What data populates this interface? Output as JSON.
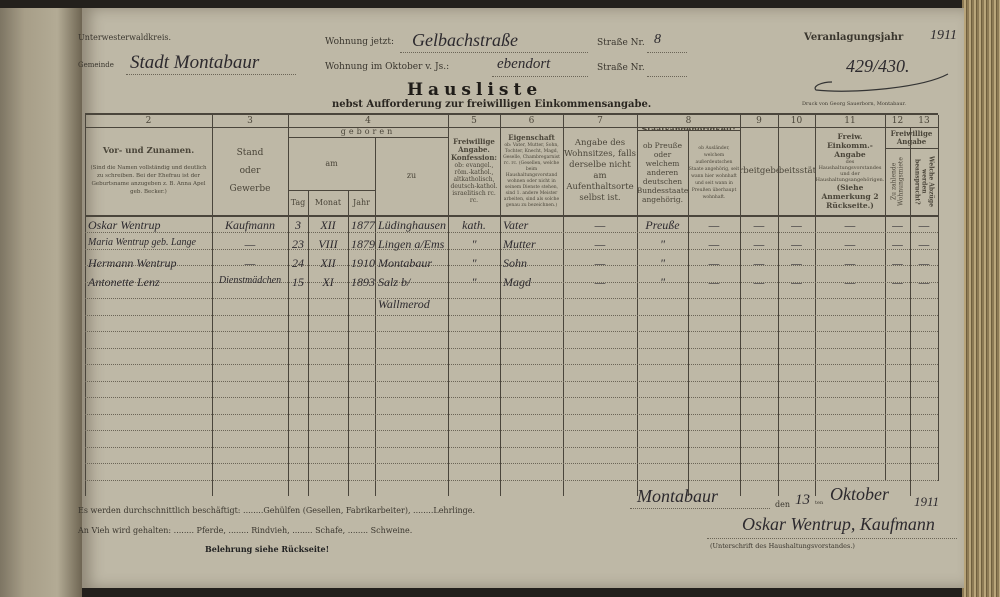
{
  "header": {
    "district_label": "Unterwesterwaldkreis.",
    "municipality_label": "Gemeinde",
    "municipality_value": "Stadt Montabaur",
    "residence_now_label": "Wohnung jetzt:",
    "residence_now_value": "Gelbachstraße",
    "street_no_label": "Straße Nr.",
    "street_no_value": "8",
    "residence_october_label": "Wohnung im Oktober v. Js.:",
    "residence_october_value": "ebendort",
    "street_no2_label": "Straße Nr.",
    "street_no2_value": "",
    "assessment_year_label": "Veranlagungsjahr",
    "assessment_year_value": "1911",
    "reference_number": "429/430.",
    "title": "Hausliste",
    "subtitle": "nebst Aufforderung zur freiwilligen Einkommensangabe.",
    "printer": "Druck von Georg Sauerborn, Montabaur."
  },
  "columns": {
    "numbers": [
      "2",
      "3",
      "4",
      "5",
      "6",
      "7",
      "8",
      "9",
      "10",
      "11",
      "12",
      "13"
    ],
    "names": {
      "title": "Vor- und Zunamen.",
      "note": "(Sind die Namen vollständig und deutlich zu schreiben. Bei der Ehefrau ist der Geburtsname anzugeben z. B. Anna Apel geb. Becker.)"
    },
    "status": "Stand oder Gewerbe",
    "born": "geboren",
    "born_on": "am",
    "day": "Tag",
    "month": "Monat",
    "year": "Jahr",
    "born_in": "zu",
    "religion": {
      "title": "Freiwillige Angabe. Konfession:",
      "note": "ob: evangel., röm.-kathol., altkatholisch, deutsch-kathol. israelitisch rc. rc."
    },
    "role": {
      "title": "Eigenschaft",
      "note": "ob: Vater, Mutter, Sohn, Tochter, Knecht, Magd, Geselle, Chambregarnist rc. rc. (Gesellen, welche beim Haushaltungsvorstand wohnen oder nicht in seinem Dienste stehen, sind 1. andere Meister arbeiten, sind als solche genau zu bezeichnen.)"
    },
    "residence": "Angabe des Wohnsitzes, falls derselbe nicht am Aufenthaltsorte selbst ist.",
    "citizenship": "Staatsangehörigkeit:",
    "citizenship_a": "ob Preuße oder welchem anderen deutschen Bundesstaate angehörig.",
    "citizenship_b": "ob Ausländer, welchem außerdeutschen Staate angehörig, seit wann hier wohnhaft und seit wann in Preußen überhaupt wohnhaft.",
    "employer": "Arbeitgeber",
    "workplace": "Arbeitsstätte",
    "income": {
      "title": "Freiw. Einkomm.-Angabe",
      "note": "des Haushaltungsvorstandes und der Haushaltungsangehörigen.",
      "ref": "(Siehe Anmerkung 2 Rückseite.)"
    },
    "voluntary": "Freiwillige Angabe",
    "col12": "Zu zahlende Wohnungsmiete",
    "col13": "Welche Abzüge werden beansprucht?"
  },
  "rows": [
    {
      "name": "Oskar Wentrup",
      "status": "Kaufmann",
      "day": "3",
      "month": "XII",
      "year": "1877",
      "place": "Lüdinghausen",
      "religion": "kath.",
      "role": "Vater",
      "residence": "—",
      "citizenship": "Preuße",
      "foreign": "—",
      "employer": "—",
      "workplace": "—",
      "income": "—",
      "rent": "—",
      "deduction": "—"
    },
    {
      "name": "Maria Wentrup geb. Lange",
      "status": "—",
      "day": "23",
      "month": "VIII",
      "year": "1879",
      "place": "Lingen a/Ems",
      "religion": "\"",
      "role": "Mutter",
      "residence": "—",
      "citizenship": "\"",
      "foreign": "—",
      "employer": "—",
      "workplace": "—",
      "income": "—",
      "rent": "—",
      "deduction": "—"
    },
    {
      "name": "Hermann Wentrup",
      "status": "—",
      "day": "24",
      "month": "XII",
      "year": "1910",
      "place": "Montabaur",
      "religion": "\"",
      "role": "Sohn",
      "residence": "—",
      "citizenship": "\"",
      "foreign": "—",
      "employer": "—",
      "workplace": "—",
      "income": "—",
      "rent": "—",
      "deduction": "—"
    },
    {
      "name": "Antonette Lenz",
      "status": "Dienstmädchen",
      "day": "15",
      "month": "XI",
      "year": "1893",
      "place": "Salz b/",
      "place2": "Wallmerod",
      "religion": "\"",
      "role": "Magd",
      "residence": "—",
      "citizenship": "\"",
      "foreign": "—",
      "employer": "—",
      "workplace": "—",
      "income": "—",
      "rent": "—",
      "deduction": "—"
    }
  ],
  "footer": {
    "employed_line": "Es werden durchschnittlich beschäftigt: ........Gehülfen (Gesellen, Fabrikarbeiter), ........Lehrlinge.",
    "livestock_line": "An Vieh wird gehalten: ........ Pferde, ........ Rindvieh, ........ Schafe, ........ Schweine.",
    "instruction": "Belehrung siehe Rückseite!",
    "place_value": "Montabaur",
    "date_den": "den",
    "date_day": "13",
    "date_ten": "ten",
    "date_month": "Oktober",
    "date_year": "1911",
    "signature": "Oskar Wentrup, Kaufmann",
    "signature_label": "(Unterschrift des Haushaltungsvorstandes.)"
  }
}
